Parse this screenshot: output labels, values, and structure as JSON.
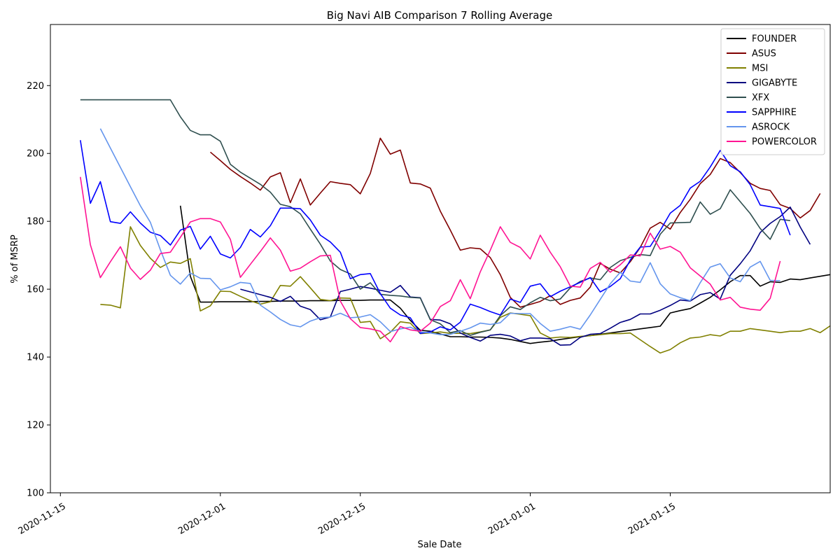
{
  "chart_data": {
    "type": "line",
    "title": "Big Navi AIB Comparison 7 Rolling Average",
    "xlabel": "Sale Date",
    "ylabel": "% of MSRP",
    "xlim": [
      "2020-11-14",
      "2021-01-31"
    ],
    "ylim": [
      100,
      238
    ],
    "x_ticks": [
      "2020-11-15",
      "2020-12-01",
      "2020-12-15",
      "2021-01-01",
      "2021-01-15"
    ],
    "y_ticks": [
      100,
      120,
      140,
      160,
      180,
      200,
      220
    ],
    "legend_position": "top-right",
    "grid": false,
    "start_date": "2020-11-17",
    "series": [
      {
        "name": "FOUNDER",
        "color": "#000000",
        "start": "2020-11-27",
        "values": [
          184.6,
          163.8,
          156.2,
          156.2,
          156.3,
          156.3,
          156.3,
          156.3,
          156.4,
          156.4,
          156.5,
          156.5,
          156.5,
          156.6,
          156.6,
          156.6,
          156.7,
          156.7,
          156.7,
          156.8,
          156.8,
          156.8,
          154.4,
          150.8,
          147.9,
          147.6,
          146.8,
          146.0,
          146.0,
          145.9,
          145.9,
          145.8,
          145.6,
          145.2,
          144.6,
          144.0,
          144.4,
          144.7,
          145.2,
          145.6,
          146.0,
          146.3,
          146.7,
          147.1,
          147.5,
          147.9,
          148.3,
          148.7,
          149.1,
          153.0,
          153.7,
          154.3,
          155.9,
          157.6,
          159.8,
          162.2,
          164.0,
          164.0,
          160.9,
          162.2,
          162.0,
          163.0,
          162.8,
          163.3,
          163.8,
          164.3
        ]
      },
      {
        "name": "ASUS",
        "color": "#800000",
        "start": "2020-11-30",
        "values": [
          200.4,
          197.9,
          195.3,
          193.2,
          191.3,
          189.2,
          193.1,
          194.3,
          185.5,
          192.5,
          184.8,
          188.3,
          191.7,
          191.2,
          190.8,
          188.1,
          194.1,
          204.5,
          199.8,
          201.0,
          191.3,
          191.0,
          189.8,
          183.0,
          177.4,
          171.5,
          172.2,
          171.9,
          169.3,
          164.3,
          157.6,
          154.7,
          155.5,
          156.4,
          158.1,
          155.5,
          156.7,
          157.4,
          160.6,
          167.6,
          165.9,
          164.8,
          168.1,
          172.3,
          178.0,
          179.7,
          177.7,
          182.6,
          186.5,
          191.1,
          193.8,
          198.5,
          197.3,
          194.4,
          191.2,
          189.7,
          189.1,
          184.9,
          183.8,
          181.0,
          183.2,
          188.2
        ]
      },
      {
        "name": "MSI",
        "color": "#808000",
        "start": "2020-11-19",
        "values": [
          155.5,
          155.3,
          154.5,
          178.4,
          172.9,
          169.1,
          166.4,
          168.0,
          167.6,
          169.0,
          153.6,
          155.1,
          159.4,
          159.3,
          157.9,
          156.6,
          155.6,
          156.3,
          161.1,
          160.9,
          163.7,
          160.4,
          157.0,
          156.6,
          157.4,
          157.3,
          150.2,
          150.5,
          145.4,
          147.3,
          150.4,
          150.0,
          146.9,
          147.1,
          147.4,
          147.0,
          147.0,
          146.9,
          147.4,
          148.0,
          151.7,
          153.0,
          152.6,
          152.2,
          147.1,
          145.6,
          145.9,
          145.8,
          146.1,
          146.3,
          146.6,
          146.9,
          146.9,
          147.1,
          145.1,
          143.1,
          141.2,
          142.2,
          144.2,
          145.6,
          145.9,
          146.6,
          146.2,
          147.6,
          147.6,
          148.4,
          148.0,
          147.6,
          147.2,
          147.6,
          147.6,
          148.4,
          147.2,
          149.2
        ]
      },
      {
        "name": "GIGABYTE",
        "color": "#000080",
        "start": "2020-11-30",
        "values": [
          null,
          null,
          null,
          160.0,
          159.2,
          158.4,
          157.6,
          156.4,
          157.9,
          155.0,
          154.0,
          151.0,
          151.8,
          159.3,
          160.0,
          160.8,
          160.3,
          159.7,
          159.1,
          161.1,
          157.7,
          157.5,
          151.1,
          150.9,
          149.8,
          147.1,
          145.8,
          144.7,
          146.4,
          146.7,
          146.2,
          144.8,
          145.6,
          145.6,
          145.4,
          143.5,
          143.6,
          145.8,
          146.7,
          146.9,
          148.5,
          150.2,
          151.1,
          152.7,
          152.7,
          153.8,
          155.2,
          156.8,
          156.5,
          158.4,
          159.0,
          157.1,
          164.1,
          167.5,
          171.3,
          176.7,
          179.4,
          181.4,
          184.2,
          178.3,
          173.2
        ]
      },
      {
        "name": "XFX",
        "color": "#2f4f4f",
        "start": "2020-11-17",
        "values": [
          215.8,
          215.8,
          215.8,
          215.8,
          215.8,
          215.8,
          215.8,
          215.8,
          215.8,
          215.8,
          210.8,
          206.8,
          205.5,
          205.5,
          203.6,
          196.8,
          194.5,
          192.7,
          190.9,
          188.6,
          185.0,
          184.3,
          182.2,
          177.7,
          173.3,
          168.3,
          165.8,
          164.5,
          160.0,
          161.9,
          158.5,
          158.2,
          158.0,
          157.6,
          157.4,
          151.0,
          149.8,
          147.2,
          147.8,
          146.4,
          147.3,
          148.0,
          152.2,
          154.8,
          154.0,
          156.0,
          157.6,
          156.6,
          157.1,
          160.4,
          162.3,
          163.3,
          162.8,
          166.4,
          168.4,
          169.4,
          170.2,
          169.9,
          176.2,
          179.5,
          179.6,
          179.7,
          185.7,
          182.1,
          183.7,
          189.3,
          185.8,
          182.3,
          177.9,
          174.7,
          180.6,
          180.2
        ]
      },
      {
        "name": "SAPPHIRE",
        "color": "#0000ff",
        "start": "2020-11-17",
        "values": [
          203.9,
          185.3,
          191.7,
          179.9,
          179.4,
          182.8,
          179.5,
          176.8,
          175.8,
          173.0,
          177.4,
          178.5,
          171.8,
          175.6,
          170.4,
          169.2,
          172.3,
          177.6,
          175.4,
          178.7,
          183.9,
          183.9,
          183.7,
          180.4,
          175.9,
          173.9,
          170.9,
          163.1,
          164.3,
          164.6,
          158.7,
          154.4,
          152.4,
          151.6,
          147.0,
          147.4,
          148.9,
          148.0,
          150.3,
          155.6,
          154.6,
          153.4,
          152.4,
          157.1,
          156.1,
          160.9,
          161.6,
          157.8,
          159.4,
          160.7,
          162.0,
          163.4,
          159.2,
          160.8,
          163.1,
          168.6,
          172.4,
          172.6,
          177.3,
          182.4,
          184.7,
          189.8,
          191.8,
          196.0,
          200.9,
          196.4,
          194.6,
          190.8,
          184.8,
          184.3,
          183.8,
          175.9
        ]
      },
      {
        "name": "ASROCK",
        "color": "#6495ed",
        "start": "2020-11-19",
        "values": [
          207.3,
          201.6,
          195.9,
          190.2,
          184.6,
          179.7,
          171.6,
          164.1,
          161.5,
          164.8,
          163.2,
          163.1,
          159.8,
          160.7,
          162.0,
          161.7,
          155.3,
          153.3,
          151.1,
          149.5,
          148.9,
          150.6,
          151.6,
          151.8,
          152.9,
          151.6,
          151.8,
          152.5,
          150.4,
          147.5,
          148.3,
          148.8,
          147.4,
          147.1,
          146.6,
          146.7,
          147.6,
          148.6,
          150.0,
          149.6,
          150.1,
          152.9,
          152.8,
          152.8,
          149.9,
          147.6,
          148.2,
          149.0,
          148.2,
          152.4,
          157.0,
          161.6,
          165.0,
          162.4,
          162.0,
          167.8,
          161.6,
          158.6,
          157.5,
          156.6,
          161.9,
          166.5,
          167.5,
          163.3,
          162.2,
          166.5,
          168.2,
          162.6,
          162.5
        ]
      },
      {
        "name": "POWERCOLOR",
        "color": "#ff1493",
        "start": "2020-11-17",
        "values": [
          193.1,
          173.1,
          163.4,
          168.1,
          172.5,
          166.2,
          162.9,
          165.6,
          170.5,
          170.9,
          175.3,
          179.8,
          180.8,
          180.8,
          179.8,
          174.7,
          163.5,
          167.3,
          171.1,
          175.1,
          171.5,
          165.3,
          166.2,
          168.1,
          169.8,
          170.0,
          156.5,
          151.3,
          148.7,
          148.3,
          147.6,
          144.5,
          149.0,
          148.0,
          147.6,
          150.0,
          154.9,
          156.6,
          162.8,
          157.2,
          165.1,
          171.5,
          178.4,
          173.8,
          172.3,
          168.9,
          175.9,
          170.9,
          166.6,
          160.9,
          160.6,
          166.1,
          167.9,
          165.0,
          167.2,
          170.1,
          169.8,
          176.5,
          171.8,
          172.6,
          170.9,
          166.3,
          163.9,
          161.5,
          156.8,
          157.6,
          154.7,
          154.1,
          153.8,
          157.3,
          168.3
        ]
      }
    ]
  }
}
